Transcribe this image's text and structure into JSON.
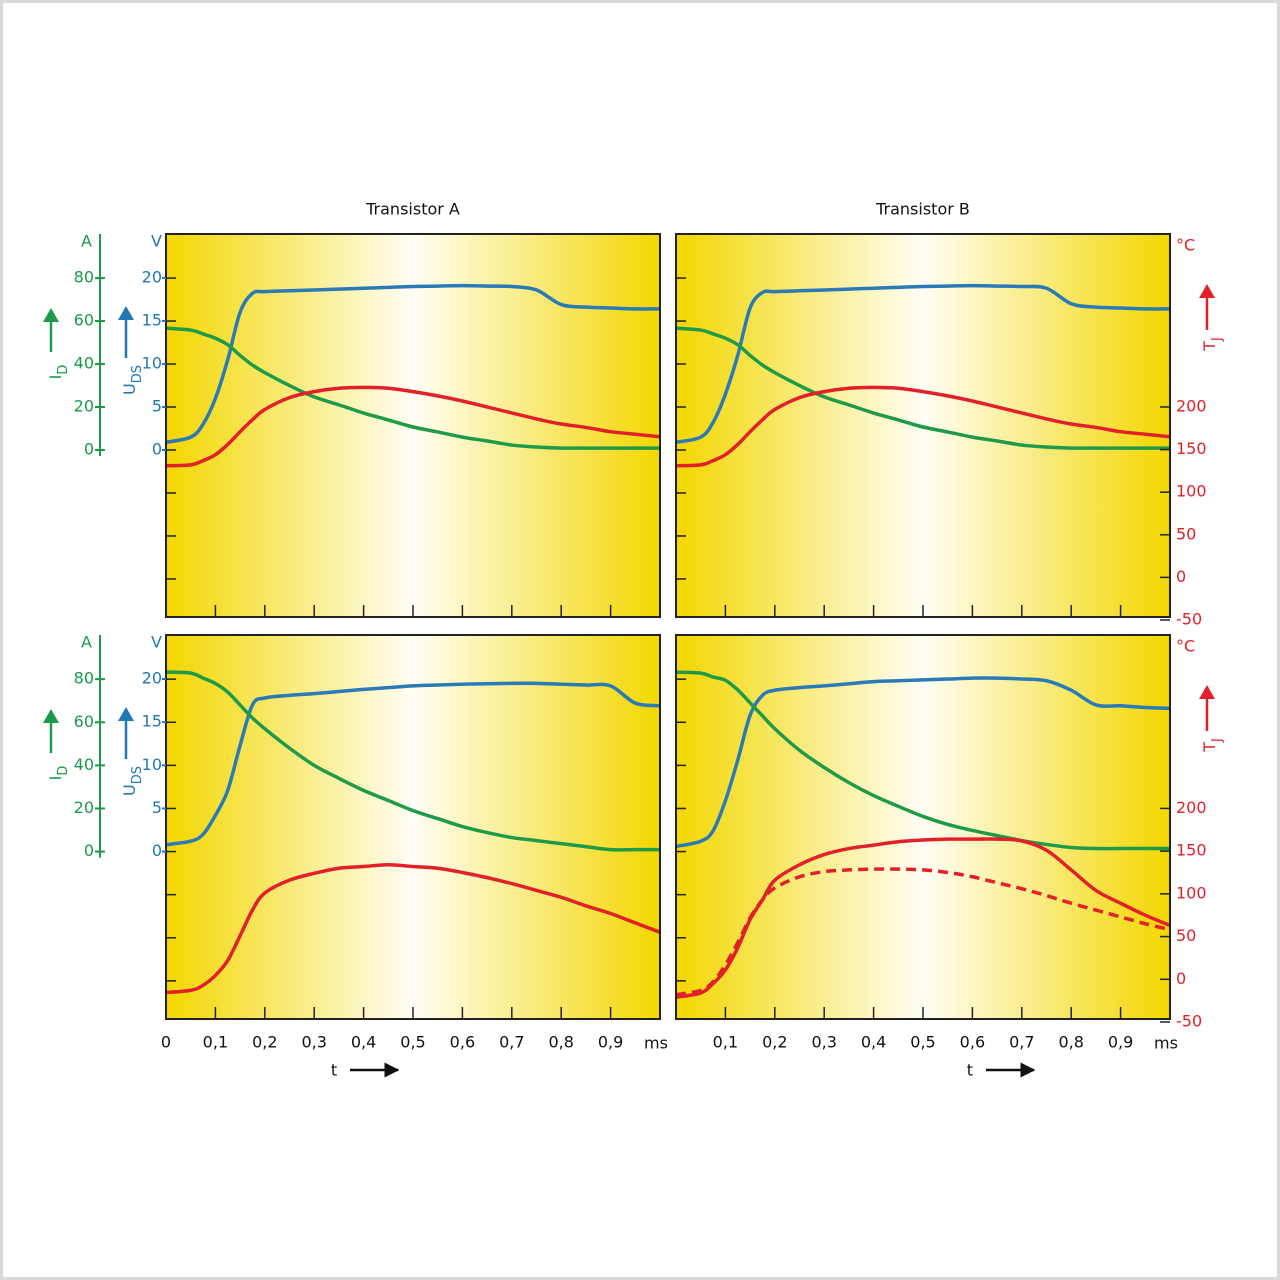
{
  "chart_data": [
    {
      "type": "line",
      "title": "Transistor A",
      "x": [
        0,
        0.05,
        0.075,
        0.1,
        0.125,
        0.15,
        0.175,
        0.2,
        0.25,
        0.3,
        0.35,
        0.4,
        0.45,
        0.5,
        0.55,
        0.6,
        0.65,
        0.7,
        0.75,
        0.8,
        0.85,
        0.9,
        0.95,
        1.0
      ],
      "xlim": [
        0,
        1
      ],
      "xtick_marks": [
        0.1,
        0.2,
        0.3,
        0.4,
        0.5,
        0.6,
        0.7,
        0.8,
        0.9
      ],
      "axes": [
        {
          "label": "I",
          "label_sub": "D",
          "unit": "A",
          "color": "#1a9a4a",
          "lim": [
            -77.7,
            100.5
          ],
          "ticks": [
            0,
            20,
            40,
            60,
            80
          ],
          "marks": [
            -60,
            -40,
            -20,
            0,
            20,
            40,
            60,
            80
          ]
        },
        {
          "label": "U",
          "label_sub": "DS",
          "unit": "V",
          "color": "#2277b5",
          "lim": [
            -19.4,
            25.1
          ],
          "ticks": [
            0,
            5,
            10,
            15,
            20
          ]
        },
        {
          "lim": [
            -46.5,
            403
          ]
        }
      ],
      "series": [
        {
          "axis": 1,
          "color": "#2a7ab8",
          "values": [
            0.9,
            1.5,
            3,
            6,
            10.5,
            16,
            18.2,
            18.4,
            18.5,
            18.6,
            18.7,
            18.8,
            18.9,
            19.0,
            19.05,
            19.1,
            19.05,
            19.0,
            18.6,
            16.9,
            16.6,
            16.5,
            16.4,
            16.4
          ]
        },
        {
          "axis": 0,
          "color": "#1f9a47",
          "values": [
            56.7,
            55.8,
            54,
            52,
            49,
            44,
            39.5,
            36,
            30,
            24.7,
            21,
            17.2,
            14,
            10.7,
            8.4,
            6,
            4.2,
            2.3,
            1.4,
            0.9,
            0.9,
            0.9,
            0.9,
            0.9
          ]
        },
        {
          "axis": 2,
          "color": "#e2202a",
          "values": [
            131,
            132,
            137,
            144,
            156,
            171,
            185,
            197,
            211,
            218,
            222,
            223,
            222,
            218,
            213,
            207,
            200,
            193,
            186,
            180,
            176,
            171,
            168,
            165
          ]
        }
      ]
    },
    {
      "type": "line",
      "title": "Transistor B",
      "x": [
        0,
        0.05,
        0.075,
        0.1,
        0.125,
        0.15,
        0.175,
        0.2,
        0.25,
        0.3,
        0.35,
        0.4,
        0.45,
        0.5,
        0.55,
        0.6,
        0.65,
        0.7,
        0.75,
        0.8,
        0.85,
        0.9,
        0.95,
        1.0
      ],
      "xlim": [
        0,
        1
      ],
      "xtick_marks": [
        0.1,
        0.2,
        0.3,
        0.4,
        0.5,
        0.6,
        0.7,
        0.8,
        0.9
      ],
      "axes": [
        {
          "lim": [
            -77.7,
            100.5
          ],
          "marks": [
            -60,
            -40,
            -20,
            0,
            20,
            40,
            60,
            80
          ]
        },
        {
          "lim": [
            -19.4,
            25.1
          ]
        },
        {
          "label": "T",
          "label_sub": "J",
          "unit": "°C",
          "color": "#e2202a",
          "lim": [
            -46.5,
            403
          ],
          "ticks": [
            -50,
            0,
            50,
            100,
            150,
            200
          ]
        }
      ],
      "series": [
        {
          "axis": 1,
          "color": "#2a7ab8",
          "values": [
            0.9,
            1.5,
            3.2,
            6.5,
            11,
            16.5,
            18.3,
            18.4,
            18.5,
            18.6,
            18.7,
            18.8,
            18.9,
            19.0,
            19.05,
            19.1,
            19.05,
            19.0,
            18.8,
            17.0,
            16.6,
            16.5,
            16.4,
            16.4
          ]
        },
        {
          "axis": 0,
          "color": "#1f9a47",
          "values": [
            56.7,
            55.8,
            54,
            52,
            49,
            44,
            39.5,
            36,
            30,
            24.7,
            21,
            17.2,
            14,
            10.7,
            8.4,
            6,
            4.2,
            2.3,
            1.4,
            0.9,
            0.9,
            0.9,
            0.9,
            0.9
          ]
        },
        {
          "axis": 2,
          "color": "#e2202a",
          "values": [
            131,
            132,
            137,
            144,
            156,
            171,
            185,
            197,
            211,
            218,
            222,
            223,
            222,
            218,
            213,
            207,
            200,
            193,
            186,
            180,
            176,
            171,
            168,
            165
          ]
        }
      ]
    },
    {
      "type": "line",
      "x": [
        0,
        0.05,
        0.075,
        0.1,
        0.125,
        0.15,
        0.175,
        0.2,
        0.25,
        0.3,
        0.35,
        0.4,
        0.45,
        0.5,
        0.55,
        0.6,
        0.65,
        0.7,
        0.75,
        0.8,
        0.85,
        0.9,
        0.95,
        1.0
      ],
      "xlim": [
        0,
        1
      ],
      "xtick_marks": [
        0.1,
        0.2,
        0.3,
        0.4,
        0.5,
        0.6,
        0.7,
        0.8,
        0.9
      ],
      "xticks": [
        0,
        {
          "value": 0.1,
          "label": "0,1"
        },
        {
          "value": 0.2,
          "label": "0,2"
        },
        {
          "value": 0.3,
          "label": "0,3"
        },
        {
          "value": 0.4,
          "label": "0,4"
        },
        {
          "value": 0.5,
          "label": "0,5"
        },
        {
          "value": 0.6,
          "label": "0,6"
        },
        {
          "value": 0.7,
          "label": "0,7"
        },
        {
          "value": 0.8,
          "label": "0,8"
        },
        {
          "value": 0.9,
          "label": "0,9"
        }
      ],
      "xunit": "ms",
      "xlabel": "t",
      "axes": [
        {
          "label": "I",
          "label_sub": "D",
          "unit": "A",
          "color": "#1a9a4a",
          "lim": [
            -77.7,
            100.5
          ],
          "ticks": [
            0,
            20,
            40,
            60,
            80
          ],
          "marks": [
            -60,
            -40,
            -20,
            0,
            20,
            40,
            60,
            80
          ]
        },
        {
          "label": "U",
          "label_sub": "DS",
          "unit": "V",
          "color": "#2277b5",
          "lim": [
            -19.4,
            25.1
          ],
          "ticks": [
            0,
            5,
            10,
            15,
            20
          ]
        },
        {
          "lim": [
            -46.5,
            403
          ]
        }
      ],
      "series": [
        {
          "axis": 1,
          "color": "#2a7ab8",
          "values": [
            0.8,
            1.2,
            2,
            4.2,
            7.1,
            12.3,
            17,
            17.8,
            18.1,
            18.3,
            18.55,
            18.8,
            19.0,
            19.2,
            19.3,
            19.4,
            19.45,
            19.5,
            19.5,
            19.4,
            19.3,
            19.2,
            17.2,
            16.9
          ]
        },
        {
          "axis": 0,
          "color": "#1f9a47",
          "values": [
            83.3,
            82.8,
            80.5,
            78,
            74,
            68,
            62,
            57,
            48,
            40,
            34,
            28.4,
            23.7,
            19,
            15.3,
            11.6,
            8.8,
            6.5,
            5.1,
            3.7,
            2.3,
            0.9,
            0.9,
            0.9
          ]
        },
        {
          "axis": 2,
          "color": "#e2202a",
          "values": [
            -15.5,
            -13,
            -7,
            4.5,
            22,
            51,
            81,
            101,
            116,
            124,
            130,
            132,
            134,
            132,
            130,
            125,
            119,
            112,
            104,
            96,
            86,
            77,
            66,
            55
          ]
        }
      ]
    },
    {
      "type": "line",
      "x": [
        0,
        0.05,
        0.075,
        0.1,
        0.125,
        0.15,
        0.175,
        0.2,
        0.25,
        0.3,
        0.35,
        0.4,
        0.45,
        0.5,
        0.55,
        0.6,
        0.65,
        0.7,
        0.75,
        0.8,
        0.85,
        0.9,
        0.95,
        1.0
      ],
      "xlim": [
        0,
        1
      ],
      "xtick_marks": [
        0.1,
        0.2,
        0.3,
        0.4,
        0.5,
        0.6,
        0.7,
        0.8,
        0.9
      ],
      "xticks": [
        {
          "value": 0.1,
          "label": "0,1"
        },
        {
          "value": 0.2,
          "label": "0,2"
        },
        {
          "value": 0.3,
          "label": "0,3"
        },
        {
          "value": 0.4,
          "label": "0,4"
        },
        {
          "value": 0.5,
          "label": "0,5"
        },
        {
          "value": 0.6,
          "label": "0,6"
        },
        {
          "value": 0.7,
          "label": "0,7"
        },
        {
          "value": 0.8,
          "label": "0,8"
        },
        {
          "value": 0.9,
          "label": "0,9"
        }
      ],
      "xunit": "ms",
      "xlabel": "t",
      "axes": [
        {
          "lim": [
            -77.7,
            100.5
          ],
          "marks": [
            -60,
            -40,
            -20,
            0,
            20,
            40,
            60,
            80
          ]
        },
        {
          "lim": [
            -19.4,
            25.1
          ]
        },
        {
          "label": "T",
          "label_sub": "J",
          "unit": "°C",
          "color": "#e2202a",
          "lim": [
            -46.5,
            403
          ],
          "ticks": [
            -50,
            0,
            50,
            100,
            150,
            200
          ]
        }
      ],
      "series": [
        {
          "axis": 1,
          "color": "#2a7ab8",
          "values": [
            0.6,
            1.2,
            2.4,
            5.9,
            10.6,
            15.8,
            18.1,
            18.7,
            19.0,
            19.2,
            19.45,
            19.7,
            19.8,
            19.9,
            20.0,
            20.1,
            20.1,
            20.0,
            19.8,
            18.7,
            17.0,
            16.9,
            16.7,
            16.6
          ]
        },
        {
          "axis": 0,
          "color": "#1f9a47",
          "values": [
            83.3,
            82.8,
            81,
            79.5,
            75,
            69,
            63,
            57,
            47,
            39,
            32,
            26,
            21,
            16.3,
            12.6,
            9.8,
            7.4,
            5.1,
            3.3,
            1.9,
            1.4,
            1.4,
            1.4,
            1.4
          ]
        },
        {
          "axis": 2,
          "color": "#e2202a",
          "values": [
            -21,
            -16,
            -5,
            11,
            37,
            70,
            93,
            116,
            134,
            146,
            153,
            157,
            161,
            163,
            164,
            164,
            164,
            162,
            151,
            128,
            104,
            89,
            75,
            63
          ]
        },
        {
          "axis": 2,
          "color": "#e2202a",
          "dash": true,
          "values": [
            -18,
            -13,
            -3,
            17,
            43,
            72,
            93,
            107,
            120,
            126,
            128,
            129,
            129,
            128,
            125,
            120,
            113,
            106,
            98,
            89,
            81,
            73,
            65,
            58
          ]
        }
      ]
    }
  ]
}
